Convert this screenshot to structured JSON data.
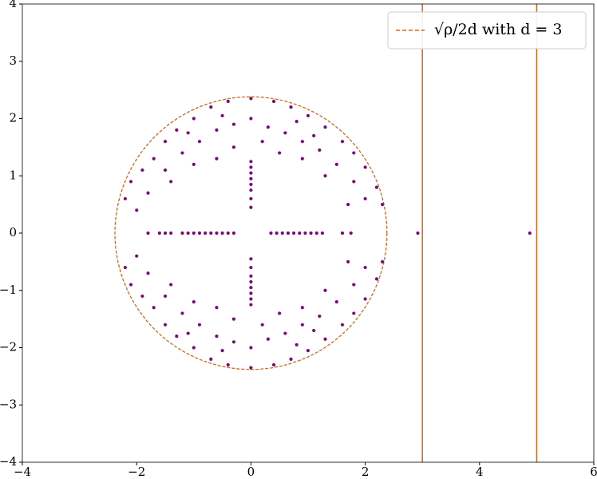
{
  "chart_data": {
    "type": "scatter",
    "xlim": [
      -4,
      6
    ],
    "ylim": [
      -4,
      4
    ],
    "xticks": [
      {
        "value": -4,
        "label": "−4"
      },
      {
        "value": -2,
        "label": "−2"
      },
      0,
      2,
      4,
      6
    ],
    "yticks": [
      {
        "value": -4,
        "label": "−4"
      },
      {
        "value": -3,
        "label": "−3"
      },
      {
        "value": -2,
        "label": "−2"
      },
      {
        "value": -1,
        "label": "−1"
      },
      0,
      1,
      2,
      3,
      4
    ],
    "legend": "upper right",
    "circle": {
      "name": "√ρ/2d with d = 3",
      "color": "#d2691e",
      "radius": 2.38
    },
    "vlines": {
      "color": "#d2691e",
      "x": [
        3,
        5
      ]
    },
    "points": {
      "color": "#7b0a7b",
      "x": [
        -1.8,
        -1.6,
        -1.5,
        -1.4,
        -1.2,
        -1.1,
        -1.0,
        -0.9,
        -0.8,
        -0.7,
        -0.6,
        -0.5,
        -0.4,
        -0.3,
        0.35,
        0.45,
        0.55,
        0.65,
        0.75,
        0.85,
        0.95,
        1.05,
        1.15,
        1.25,
        1.6,
        1.75,
        2.92,
        4.88,
        0,
        0,
        0,
        0,
        0,
        0,
        0,
        0,
        0,
        0,
        0,
        0,
        0,
        0,
        0,
        0,
        -2.2,
        -2.1,
        -1.9,
        -1.7,
        -1.5,
        -1.3,
        -1.0,
        -0.7,
        -0.4,
        0,
        0.4,
        0.7,
        1.0,
        1.3,
        1.6,
        1.8,
        2.0,
        2.2,
        2.3,
        -1.8,
        -1.5,
        -1.2,
        -0.9,
        -0.6,
        -0.3,
        0,
        0.3,
        0.6,
        0.9,
        1.2,
        1.5,
        1.8,
        2.0,
        -1.0,
        -0.6,
        -0.3,
        0.2,
        0.5,
        0.9,
        1.3,
        -1.4,
        -2.0,
        1.7,
        -0.5,
        0.8,
        -1.1,
        1.1,
        -2.2,
        -2.1,
        -1.9,
        -1.7,
        -1.5,
        -1.3,
        -1.0,
        -0.7,
        -0.4,
        0,
        0.4,
        0.7,
        1.0,
        1.3,
        1.6,
        1.8,
        2.0,
        2.2,
        2.3,
        -1.8,
        -1.5,
        -1.2,
        -0.9,
        -0.6,
        -0.3,
        0,
        0.3,
        0.6,
        0.9,
        1.2,
        1.5,
        1.8,
        2.0,
        -1.0,
        -0.6,
        -0.3,
        0.2,
        0.5,
        0.9,
        1.3,
        -1.4,
        -2.0,
        1.7,
        -0.5,
        0.8,
        -1.1,
        1.1
      ],
      "y": [
        0,
        0,
        0,
        0,
        0,
        0,
        0,
        0,
        0,
        0,
        0,
        0,
        0,
        0,
        0,
        0,
        0,
        0,
        0,
        0,
        0,
        0,
        0,
        0,
        0,
        0,
        0,
        0,
        0.45,
        0.6,
        0.75,
        0.85,
        0.95,
        1.05,
        1.15,
        1.25,
        -0.45,
        -0.6,
        -0.75,
        -0.85,
        -0.95,
        -1.05,
        -1.15,
        -1.25,
        0.6,
        0.9,
        1.1,
        1.3,
        1.6,
        1.8,
        2.0,
        2.2,
        2.3,
        2.35,
        2.3,
        2.2,
        2.05,
        1.85,
        1.6,
        1.4,
        1.15,
        0.8,
        0.5,
        0.7,
        1.1,
        1.4,
        1.6,
        1.8,
        1.9,
        2.0,
        1.85,
        1.75,
        1.6,
        1.45,
        1.2,
        0.9,
        0.6,
        1.2,
        1.3,
        1.5,
        1.6,
        1.4,
        1.3,
        1.0,
        0.9,
        0.4,
        0.5,
        2.05,
        1.95,
        1.75,
        1.7,
        -0.6,
        -0.9,
        -1.1,
        -1.3,
        -1.6,
        -1.8,
        -2.0,
        -2.2,
        -2.3,
        -2.35,
        -2.3,
        -2.2,
        -2.05,
        -1.85,
        -1.6,
        -1.4,
        -1.15,
        -0.8,
        -0.5,
        -0.7,
        -1.1,
        -1.4,
        -1.6,
        -1.8,
        -1.9,
        -2.0,
        -1.85,
        -1.75,
        -1.6,
        -1.45,
        -1.2,
        -0.9,
        -0.6,
        -1.2,
        -1.3,
        -1.5,
        -1.6,
        -1.4,
        -1.3,
        -1.0,
        -0.9,
        -0.4,
        -0.5,
        -2.05,
        -1.95,
        -1.75,
        -1.7
      ]
    }
  }
}
